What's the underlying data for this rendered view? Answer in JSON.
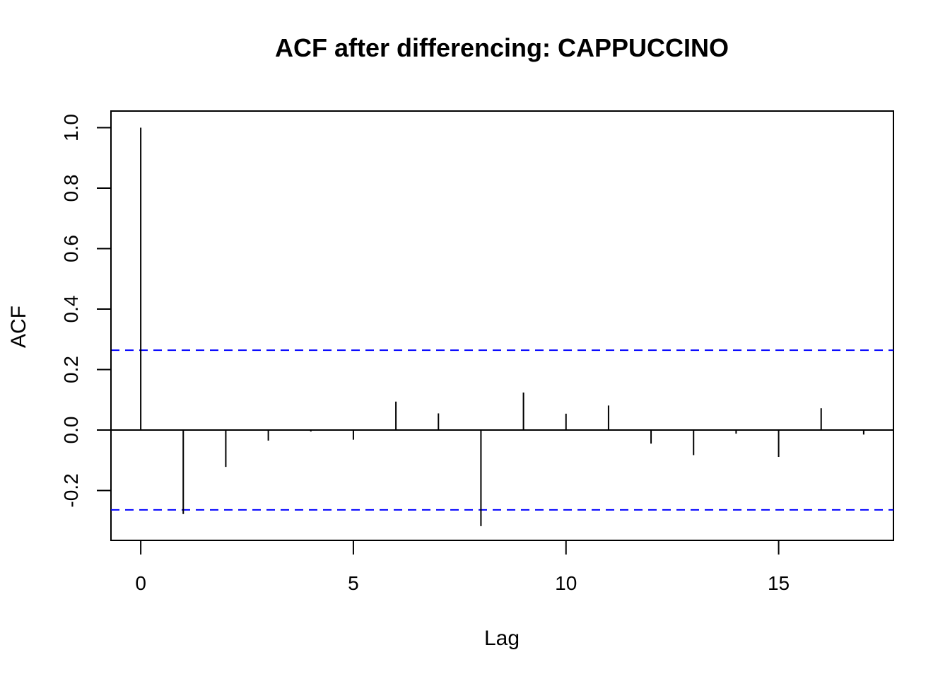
{
  "chart_data": {
    "type": "bar",
    "title": "ACF after differencing: CAPPUCCINO",
    "xlabel": "Lag",
    "ylabel": "ACF",
    "xlim": [
      -0.7,
      17.7
    ],
    "ylim": [
      -0.365,
      1.055
    ],
    "x_ticks": [
      0,
      5,
      10,
      15
    ],
    "x_tick_labels": [
      "0",
      "5",
      "10",
      "15"
    ],
    "y_ticks": [
      -0.2,
      0.0,
      0.2,
      0.4,
      0.6,
      0.8,
      1.0
    ],
    "y_tick_labels": [
      "-0.2",
      "0.0",
      "0.2",
      "0.4",
      "0.6",
      "0.8",
      "1.0"
    ],
    "lags": [
      0,
      1,
      2,
      3,
      4,
      5,
      6,
      7,
      8,
      9,
      10,
      11,
      12,
      13,
      14,
      15,
      16,
      17
    ],
    "values": [
      1.0,
      -0.278,
      -0.122,
      -0.035,
      -0.005,
      -0.032,
      0.094,
      0.055,
      -0.318,
      0.124,
      0.054,
      0.081,
      -0.045,
      -0.083,
      -0.012,
      -0.089,
      0.072,
      -0.015
    ],
    "confidence_bound": 0.264,
    "colors": {
      "bars": "#000000",
      "confidence": "#0000ff",
      "axis": "#000000"
    },
    "grid": false
  }
}
